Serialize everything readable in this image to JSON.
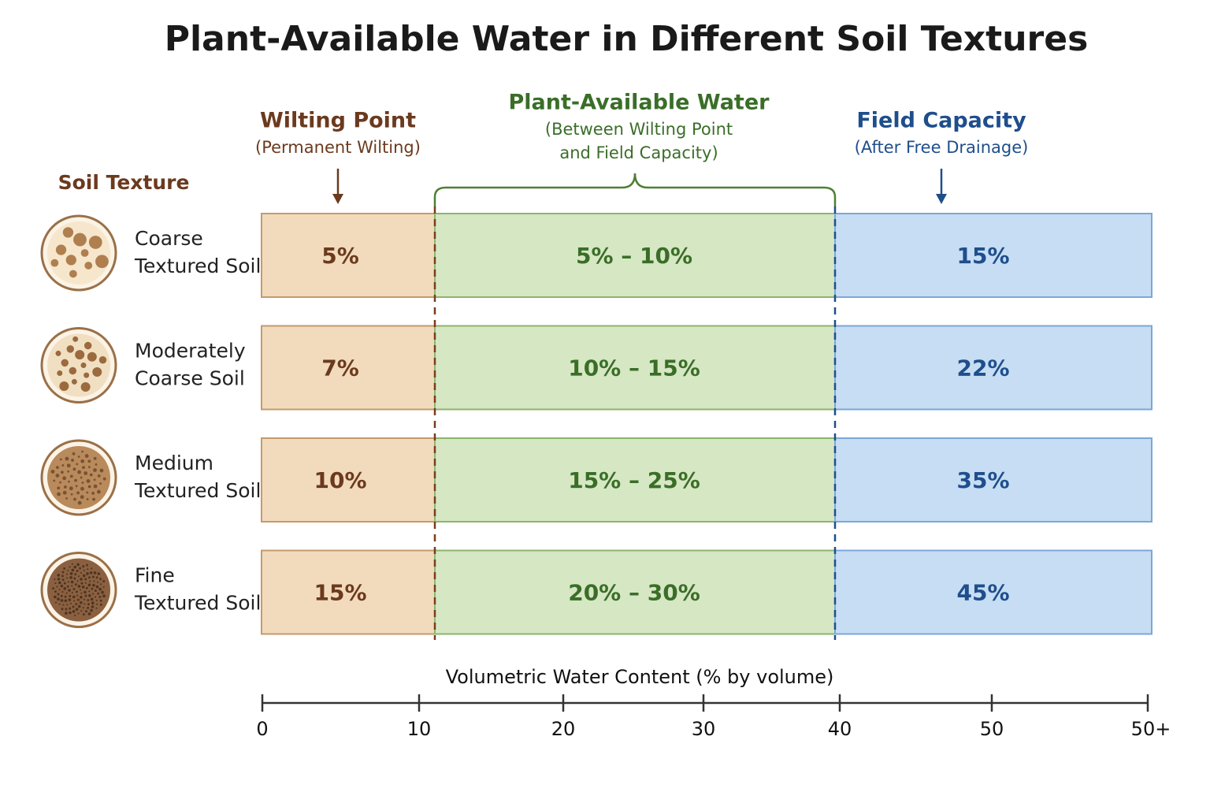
{
  "title": "Plant-Available Water in Different Soil Textures",
  "row_header": "Soil Texture",
  "columns": {
    "wilting": {
      "title": "Wilting Point",
      "subtitle": [
        "(Permanent Wilting)"
      ]
    },
    "available": {
      "title": "Plant-Available Water",
      "subtitle": [
        "(Between Wilting Point",
        "and Field Capacity)"
      ]
    },
    "field": {
      "title": "Field Capacity",
      "subtitle": [
        "(After Free Drainage)"
      ]
    }
  },
  "rows": [
    {
      "label": [
        "Coarse",
        "Textured Soil"
      ],
      "wilting": "5%",
      "available": "5% – 10%",
      "field": "15%"
    },
    {
      "label": [
        "Moderately",
        "Coarse Soil"
      ],
      "wilting": "7%",
      "available": "10% – 15%",
      "field": "22%"
    },
    {
      "label": [
        "Medium",
        "Textured Soil"
      ],
      "wilting": "10%",
      "available": "15% – 25%",
      "field": "35%"
    },
    {
      "label": [
        "Fine",
        "Textured Soil"
      ],
      "wilting": "15%",
      "available": "20% – 30%",
      "field": "45%"
    }
  ],
  "axis": {
    "label": "Volumetric Water Content (% by volume)",
    "ticks": [
      "0",
      "10",
      "20",
      "30",
      "40",
      "50",
      "50+"
    ]
  }
}
